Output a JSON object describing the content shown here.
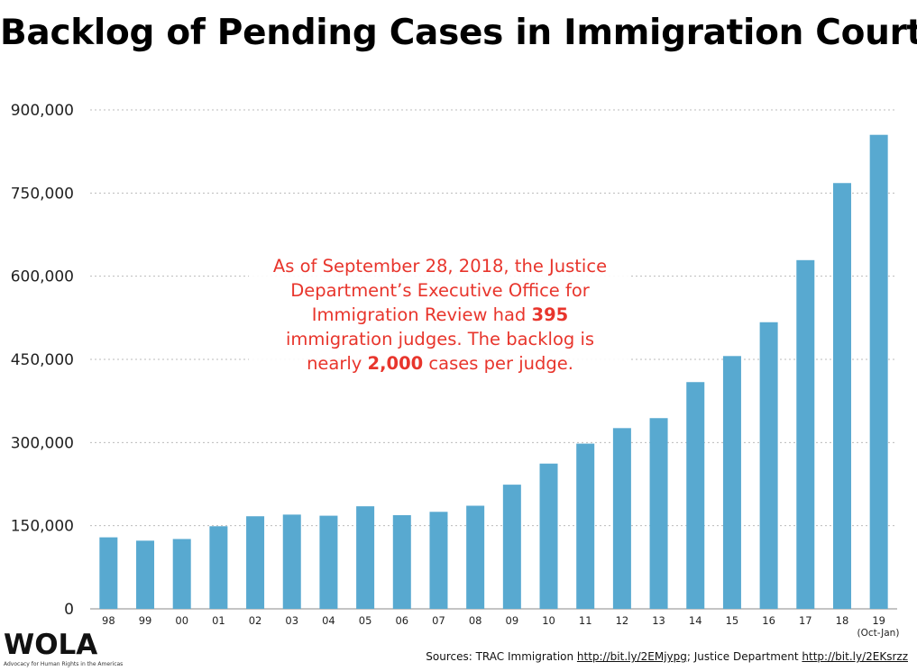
{
  "chart_data": {
    "type": "bar",
    "title": "Backlog of Pending Cases in Immigration Courts",
    "categories": [
      "98",
      "99",
      "00",
      "01",
      "02",
      "03",
      "04",
      "05",
      "06",
      "07",
      "08",
      "09",
      "10",
      "11",
      "12",
      "13",
      "14",
      "15",
      "16",
      "17",
      "18",
      "19"
    ],
    "values": [
      129000,
      123000,
      126000,
      149000,
      167000,
      170000,
      168000,
      185000,
      169000,
      175000,
      186000,
      224000,
      262000,
      298000,
      326000,
      344000,
      409000,
      456000,
      517000,
      629000,
      768000,
      855000
    ],
    "x_note": "(Oct-Jan)",
    "ylim": [
      0,
      900000
    ],
    "yticks": [
      0,
      150000,
      300000,
      450000,
      600000,
      750000,
      900000
    ],
    "ytick_labels": [
      "0",
      "150,000",
      "300,000",
      "450,000",
      "600,000",
      "750,000",
      "900,000"
    ],
    "grid": true,
    "bar_color": "#58a9d0"
  },
  "annotation": {
    "line1": "As of September 28, 2018, the Justice",
    "line2": "Department’s Executive Office for",
    "line3_pre": "Immigration Review had ",
    "line3_bold": "395",
    "line4": "immigration judges. The backlog is",
    "line5_pre": "nearly ",
    "line5_bold": "2,000",
    "line5_post": " cases per judge.",
    "color": "#e8352c"
  },
  "logo": {
    "name": "WOLA",
    "tagline": "Advocacy for Human Rights in the Americas"
  },
  "sources": {
    "prefix": "Sources: TRAC Immigration ",
    "link1": "http://bit.ly/2EMjypg",
    "middle": "; Justice Department  ",
    "link2": "http://bit.ly/2EKsrzz"
  }
}
